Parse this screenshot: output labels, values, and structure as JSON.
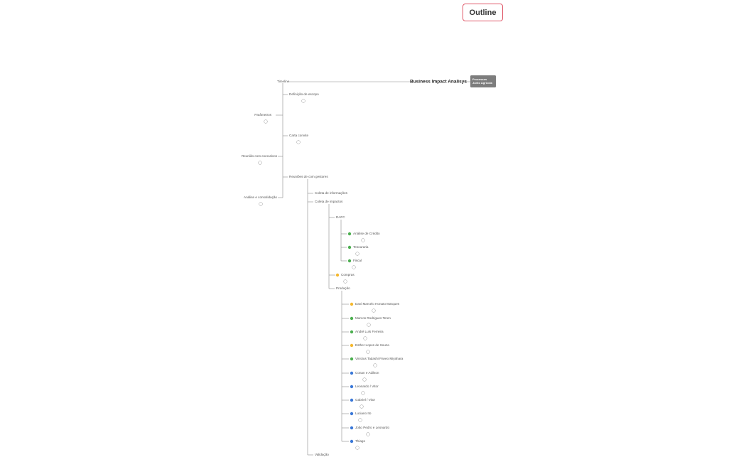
{
  "toolbar": {
    "outline": "Outline"
  },
  "root": {
    "label": "Business Impact Analisys",
    "tag": "Processos Junto Agrícola"
  },
  "nodes": [
    {
      "label": "Timeline"
    },
    {
      "label": "Definição de escopo"
    },
    {
      "label": "Parâmetros"
    },
    {
      "label": "Carta convite"
    },
    {
      "label": "Reunião com executivos"
    },
    {
      "label": "Reuniões de com gestores"
    },
    {
      "label": "Análise e consolidação"
    },
    {
      "label": "Coleta de informações"
    },
    {
      "label": "Coleta de impactos"
    },
    {
      "label": "DAFC"
    },
    {
      "label": "Análise de Crédito",
      "color": "#4caf50"
    },
    {
      "label": "Tesouraria",
      "color": "#4caf50"
    },
    {
      "label": "Fiscal",
      "color": "#4caf50"
    },
    {
      "label": "Compras",
      "color": "#f5b82e"
    },
    {
      "label": "Produção"
    },
    {
      "label": "Davi Marcelo Honato Marques",
      "color": "#f5b82e"
    },
    {
      "label": "Marcos Rodrigues Teren",
      "color": "#4caf50"
    },
    {
      "label": "André Luís Ferreira",
      "color": "#4caf50"
    },
    {
      "label": "Esther Lopes de Souza",
      "color": "#f5b82e"
    },
    {
      "label": "Vinicius Tadashi Paveo Miyahara",
      "color": "#4caf50"
    },
    {
      "label": "Conan e Adilson",
      "color": "#3a78d8"
    },
    {
      "label": "Leonardo / Vitor",
      "color": "#3a78d8"
    },
    {
      "label": "Gabriel / Vitor",
      "color": "#3a78d8"
    },
    {
      "label": "Luciano Ito",
      "color": "#3a78d8"
    },
    {
      "label": "João Pedro e Leonardo",
      "color": "#3a78d8"
    },
    {
      "label": "Thiago",
      "color": "#3a78d8"
    },
    {
      "label": "Validação"
    }
  ]
}
